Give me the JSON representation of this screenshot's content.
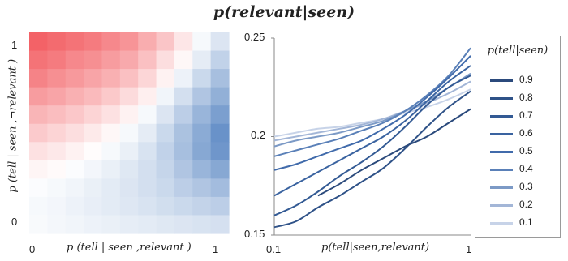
{
  "title": "p(relevant|seen)",
  "chart_data": [
    {
      "type": "heatmap",
      "xlabel": "p (tell | seen ,relevant )",
      "ylabel": "p (tell | seen ,¬relevant )",
      "x_ticks": [
        "0",
        "1"
      ],
      "y_ticks": [
        "1",
        "0"
      ],
      "colors": {
        "low": "#4f7fbf",
        "mid": "#ffffff",
        "high": "#f25a5f"
      },
      "grid": [
        [
          0.95,
          0.9,
          0.85,
          0.8,
          0.72,
          0.65,
          0.5,
          0.35,
          0.15,
          -0.05,
          -0.2
        ],
        [
          0.85,
          0.8,
          0.72,
          0.68,
          0.6,
          0.52,
          0.38,
          0.2,
          0.05,
          -0.15,
          -0.35
        ],
        [
          0.75,
          0.68,
          0.62,
          0.55,
          0.48,
          0.38,
          0.25,
          0.08,
          -0.1,
          -0.3,
          -0.5
        ],
        [
          0.6,
          0.55,
          0.48,
          0.42,
          0.33,
          0.22,
          0.1,
          -0.08,
          -0.25,
          -0.45,
          -0.62
        ],
        [
          0.45,
          0.4,
          0.34,
          0.26,
          0.18,
          0.08,
          -0.05,
          -0.2,
          -0.38,
          -0.58,
          -0.75
        ],
        [
          0.32,
          0.26,
          0.2,
          0.13,
          0.05,
          -0.05,
          -0.15,
          -0.3,
          -0.48,
          -0.66,
          -0.85
        ],
        [
          0.18,
          0.14,
          0.08,
          0.02,
          -0.05,
          -0.12,
          -0.22,
          -0.35,
          -0.5,
          -0.68,
          -0.82
        ],
        [
          0.06,
          0.03,
          -0.02,
          -0.07,
          -0.12,
          -0.18,
          -0.25,
          -0.33,
          -0.45,
          -0.58,
          -0.68
        ],
        [
          -0.02,
          -0.05,
          -0.08,
          -0.12,
          -0.16,
          -0.2,
          -0.25,
          -0.3,
          -0.38,
          -0.45,
          -0.52
        ],
        [
          -0.05,
          -0.07,
          -0.1,
          -0.13,
          -0.16,
          -0.19,
          -0.22,
          -0.26,
          -0.3,
          -0.34,
          -0.38
        ],
        [
          -0.04,
          -0.06,
          -0.08,
          -0.1,
          -0.12,
          -0.14,
          -0.16,
          -0.18,
          -0.2,
          -0.22,
          -0.24
        ]
      ]
    },
    {
      "type": "line",
      "xlabel": "p(tell|seen,relevant)",
      "xlim": [
        0.1,
        1
      ],
      "ylim": [
        0.15,
        0.25
      ],
      "x_ticks": [
        "0.1",
        "1"
      ],
      "y_ticks": [
        "0.25",
        "0.2",
        "0.15"
      ],
      "legend_title": "p(tell|seen)",
      "legend_position": "right",
      "series": [
        {
          "name": "0.9",
          "color": "#2b4a7c",
          "x": [
            0.3,
            0.4,
            0.5,
            0.6,
            0.7,
            0.8,
            0.9,
            1.0
          ],
          "y": [
            0.17,
            0.176,
            0.183,
            0.189,
            0.195,
            0.2,
            0.207,
            0.214
          ]
        },
        {
          "name": "0.8",
          "color": "#2f5288",
          "x": [
            0.1,
            0.2,
            0.3,
            0.4,
            0.5,
            0.6,
            0.7,
            0.8,
            0.9,
            1.0
          ],
          "y": [
            0.154,
            0.157,
            0.164,
            0.17,
            0.177,
            0.184,
            0.194,
            0.205,
            0.215,
            0.223
          ]
        },
        {
          "name": "0.7",
          "color": "#335a94",
          "x": [
            0.1,
            0.2,
            0.3,
            0.4,
            0.5,
            0.6,
            0.7,
            0.8,
            0.9,
            1.0
          ],
          "y": [
            0.16,
            0.165,
            0.172,
            0.18,
            0.187,
            0.195,
            0.205,
            0.216,
            0.225,
            0.231
          ]
        },
        {
          "name": "0.6",
          "color": "#3a63a0",
          "x": [
            0.1,
            0.2,
            0.3,
            0.4,
            0.5,
            0.6,
            0.7,
            0.8,
            0.9,
            1.0
          ],
          "y": [
            0.17,
            0.176,
            0.182,
            0.188,
            0.194,
            0.2,
            0.208,
            0.218,
            0.228,
            0.236
          ]
        },
        {
          "name": "0.5",
          "color": "#416bab",
          "x": [
            0.1,
            0.2,
            0.3,
            0.4,
            0.5,
            0.6,
            0.7,
            0.8,
            0.9,
            1.0
          ],
          "y": [
            0.183,
            0.186,
            0.19,
            0.194,
            0.198,
            0.204,
            0.211,
            0.22,
            0.23,
            0.241
          ]
        },
        {
          "name": "0.4",
          "color": "#5a80b8",
          "x": [
            0.1,
            0.2,
            0.3,
            0.4,
            0.5,
            0.6,
            0.7,
            0.8,
            0.9,
            1.0
          ],
          "y": [
            0.19,
            0.193,
            0.196,
            0.199,
            0.203,
            0.207,
            0.213,
            0.221,
            0.231,
            0.245
          ]
        },
        {
          "name": "0.3",
          "color": "#7c9ac6",
          "x": [
            0.1,
            0.2,
            0.3,
            0.4,
            0.5,
            0.6,
            0.7,
            0.8,
            0.9,
            1.0
          ],
          "y": [
            0.195,
            0.198,
            0.2,
            0.202,
            0.205,
            0.208,
            0.213,
            0.218,
            0.225,
            0.232
          ]
        },
        {
          "name": "0.2",
          "color": "#a3b6d7",
          "x": [
            0.1,
            0.2,
            0.3,
            0.4,
            0.5,
            0.6,
            0.7,
            0.8,
            0.9,
            1.0
          ],
          "y": [
            0.198,
            0.2,
            0.202,
            0.204,
            0.206,
            0.209,
            0.213,
            0.217,
            0.222,
            0.228
          ]
        },
        {
          "name": "0.1",
          "color": "#c7d3e8",
          "x": [
            0.1,
            0.2,
            0.3,
            0.4,
            0.5,
            0.6,
            0.7,
            0.8,
            0.9,
            1.0
          ],
          "y": [
            0.2,
            0.202,
            0.204,
            0.205,
            0.207,
            0.209,
            0.212,
            0.215,
            0.219,
            0.224
          ]
        }
      ]
    }
  ]
}
